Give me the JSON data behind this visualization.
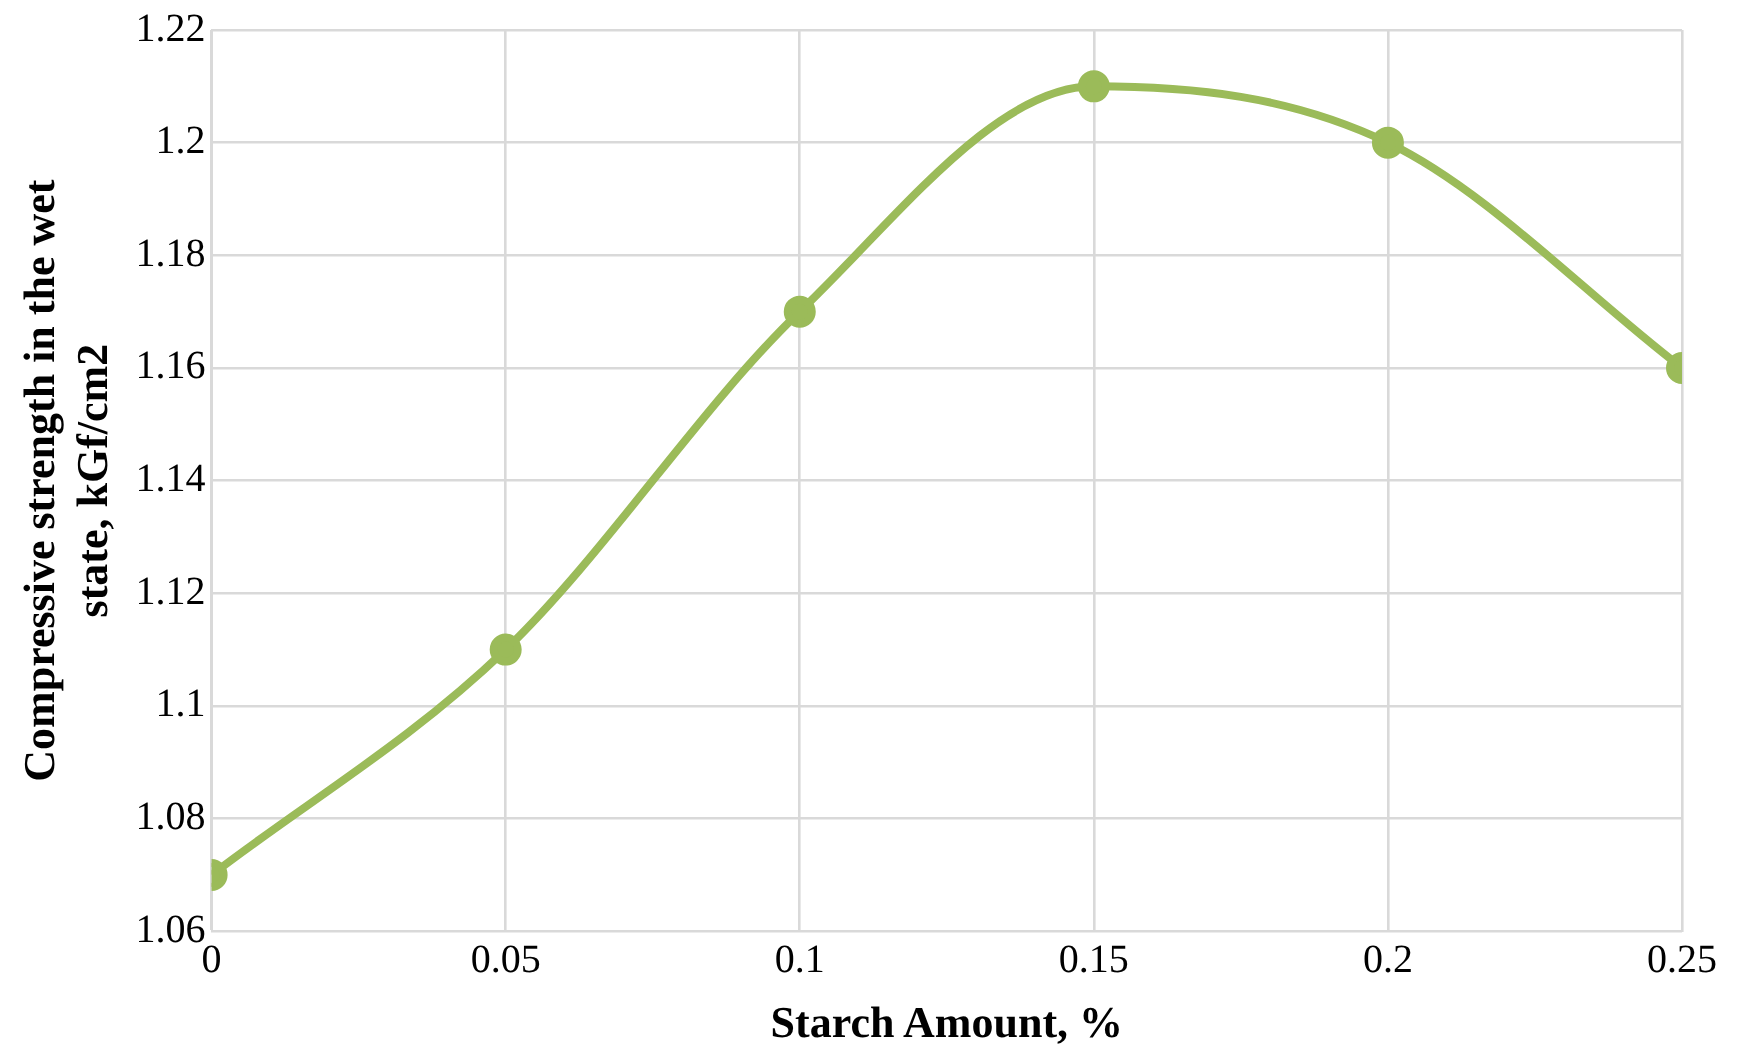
{
  "chart_data": {
    "type": "line",
    "xlabel": "Starch Amount, %",
    "ylabel": "Compressive strength in the wet state, kGf/cm2",
    "x": [
      0,
      0.05,
      0.1,
      0.15,
      0.2,
      0.25
    ],
    "series": [
      {
        "color": "#9bbb59",
        "values": [
          1.07,
          1.11,
          1.17,
          1.21,
          1.2,
          1.16
        ]
      }
    ],
    "xlim": [
      0,
      0.25
    ],
    "xticks": [
      0,
      0.05,
      0.1,
      0.15,
      0.2,
      0.25
    ],
    "ylim": [
      1.06,
      1.22
    ],
    "yticks": [
      1.06,
      1.08,
      1.1,
      1.12,
      1.14,
      1.16,
      1.18,
      1.2,
      1.22
    ],
    "grid": true,
    "legend": false,
    "marker": "circle",
    "line_style": "solid"
  }
}
